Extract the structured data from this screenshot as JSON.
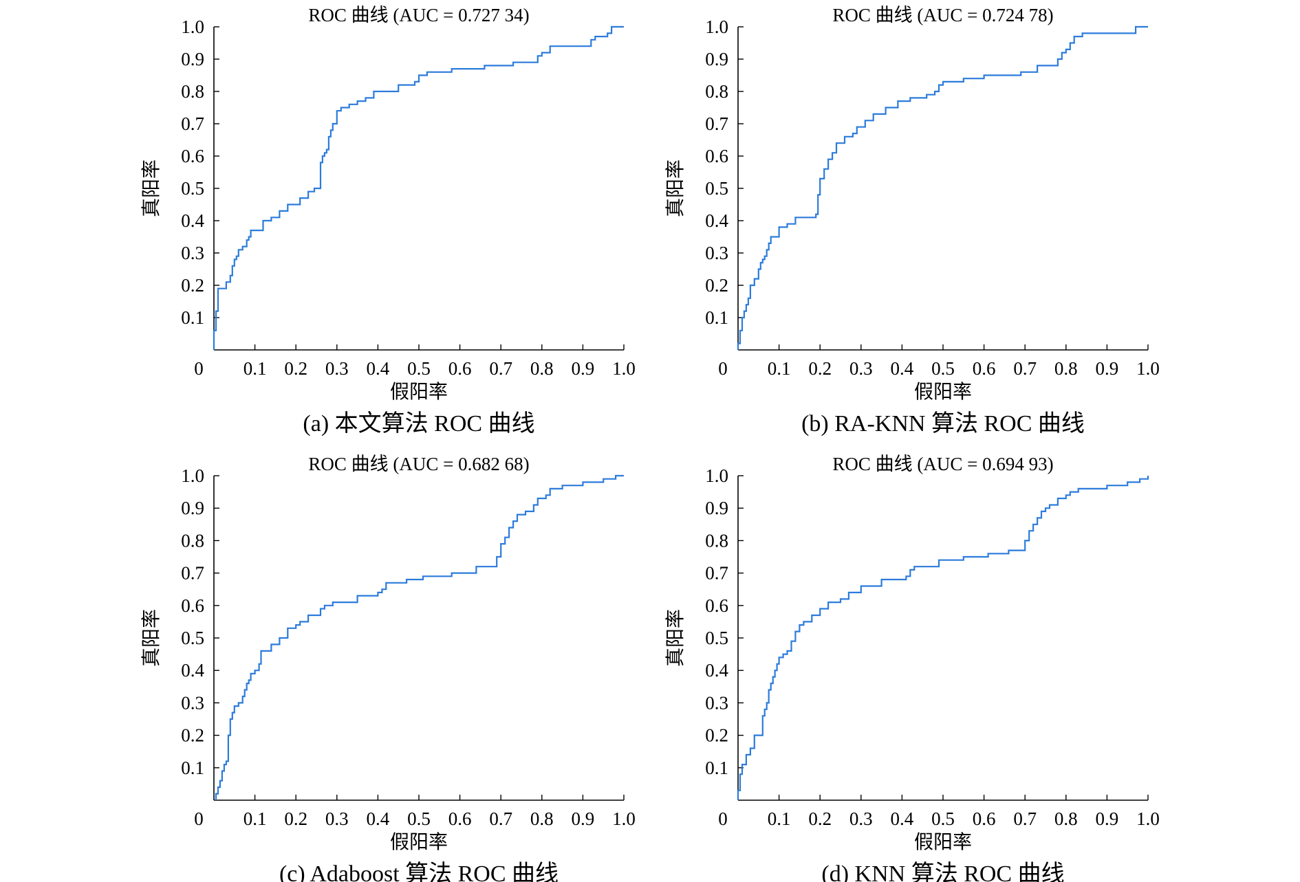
{
  "figure": {
    "curve_color": "#2b7bdc"
  },
  "chart_data": [
    {
      "type": "line",
      "title": "ROC 曲线 (AUC = 0.727 34)",
      "xlabel": "假阳率",
      "ylabel": "真阳率",
      "caption": "(a) 本文算法 ROC 曲线",
      "xlim": [
        0,
        1.0
      ],
      "ylim": [
        0,
        1.0
      ],
      "x_ticks": [
        0,
        0.1,
        0.2,
        0.3,
        0.4,
        0.5,
        0.6,
        0.7,
        0.8,
        0.9,
        1.0
      ],
      "x_tick_labels": [
        "0",
        "0.1",
        "0.2",
        "0.3",
        "0.4",
        "0.5",
        "0.6",
        "0.7",
        "0.8",
        "0.9",
        "1.0"
      ],
      "y_ticks": [
        0.1,
        0.2,
        0.3,
        0.4,
        0.5,
        0.6,
        0.7,
        0.8,
        0.9,
        1.0
      ],
      "y_tick_labels": [
        "0.1",
        "0.2",
        "0.3",
        "0.4",
        "0.5",
        "0.6",
        "0.7",
        "0.8",
        "0.9",
        "1.0"
      ],
      "grid": false,
      "series": [
        {
          "x": [
            0,
            0,
            0.005,
            0.005,
            0.01,
            0.01,
            0.03,
            0.03,
            0.04,
            0.04,
            0.045,
            0.045,
            0.05,
            0.05,
            0.055,
            0.055,
            0.06,
            0.06,
            0.07,
            0.07,
            0.08,
            0.08,
            0.085,
            0.085,
            0.09,
            0.09,
            0.12,
            0.12,
            0.14,
            0.14,
            0.16,
            0.16,
            0.18,
            0.18,
            0.21,
            0.21,
            0.23,
            0.23,
            0.245,
            0.245,
            0.26,
            0.26,
            0.265,
            0.265,
            0.27,
            0.27,
            0.275,
            0.275,
            0.28,
            0.28,
            0.285,
            0.285,
            0.29,
            0.29,
            0.3,
            0.3,
            0.31,
            0.31,
            0.33,
            0.33,
            0.35,
            0.35,
            0.37,
            0.37,
            0.39,
            0.39,
            0.45,
            0.45,
            0.49,
            0.49,
            0.5,
            0.5,
            0.52,
            0.52,
            0.58,
            0.58,
            0.66,
            0.66,
            0.73,
            0.73,
            0.79,
            0.79,
            0.8,
            0.8,
            0.82,
            0.82,
            0.92,
            0.92,
            0.93,
            0.93,
            0.96,
            0.96,
            0.97,
            0.97,
            1.0,
            1.0
          ],
          "y": [
            0,
            0.06,
            0.06,
            0.12,
            0.12,
            0.19,
            0.19,
            0.21,
            0.21,
            0.23,
            0.23,
            0.26,
            0.26,
            0.28,
            0.28,
            0.29,
            0.29,
            0.31,
            0.31,
            0.32,
            0.32,
            0.34,
            0.34,
            0.35,
            0.35,
            0.37,
            0.37,
            0.4,
            0.4,
            0.41,
            0.41,
            0.43,
            0.43,
            0.45,
            0.45,
            0.47,
            0.47,
            0.49,
            0.49,
            0.5,
            0.5,
            0.58,
            0.58,
            0.6,
            0.6,
            0.61,
            0.61,
            0.62,
            0.62,
            0.66,
            0.66,
            0.68,
            0.68,
            0.7,
            0.7,
            0.74,
            0.74,
            0.75,
            0.75,
            0.76,
            0.76,
            0.77,
            0.77,
            0.78,
            0.78,
            0.8,
            0.8,
            0.82,
            0.82,
            0.83,
            0.83,
            0.85,
            0.85,
            0.86,
            0.86,
            0.87,
            0.87,
            0.88,
            0.88,
            0.89,
            0.89,
            0.91,
            0.91,
            0.92,
            0.92,
            0.94,
            0.94,
            0.96,
            0.96,
            0.97,
            0.97,
            0.98,
            0.98,
            1.0,
            1.0,
            1.0
          ]
        }
      ]
    },
    {
      "type": "line",
      "title": "ROC 曲线 (AUC = 0.724 78)",
      "xlabel": "假阳率",
      "ylabel": "真阳率",
      "caption": "(b) RA-KNN 算法 ROC 曲线",
      "xlim": [
        0,
        1.0
      ],
      "ylim": [
        0,
        1.0
      ],
      "x_ticks": [
        0,
        0.1,
        0.2,
        0.3,
        0.4,
        0.5,
        0.6,
        0.7,
        0.8,
        0.9,
        1.0
      ],
      "x_tick_labels": [
        "0",
        "0.1",
        "0.2",
        "0.3",
        "0.4",
        "0.5",
        "0.6",
        "0.7",
        "0.8",
        "0.9",
        "1.0"
      ],
      "y_ticks": [
        0.1,
        0.2,
        0.3,
        0.4,
        0.5,
        0.6,
        0.7,
        0.8,
        0.9,
        1.0
      ],
      "y_tick_labels": [
        "0.1",
        "0.2",
        "0.3",
        "0.4",
        "0.5",
        "0.6",
        "0.7",
        "0.8",
        "0.9",
        "1.0"
      ],
      "grid": false,
      "series": [
        {
          "x": [
            0,
            0,
            0.005,
            0.005,
            0.01,
            0.01,
            0.015,
            0.015,
            0.02,
            0.02,
            0.025,
            0.025,
            0.03,
            0.03,
            0.04,
            0.04,
            0.05,
            0.05,
            0.055,
            0.055,
            0.06,
            0.06,
            0.065,
            0.065,
            0.07,
            0.07,
            0.075,
            0.075,
            0.08,
            0.08,
            0.1,
            0.1,
            0.12,
            0.12,
            0.14,
            0.14,
            0.19,
            0.19,
            0.195,
            0.195,
            0.2,
            0.2,
            0.21,
            0.21,
            0.22,
            0.22,
            0.23,
            0.23,
            0.24,
            0.24,
            0.26,
            0.26,
            0.28,
            0.28,
            0.29,
            0.29,
            0.31,
            0.31,
            0.33,
            0.33,
            0.36,
            0.36,
            0.39,
            0.39,
            0.42,
            0.42,
            0.46,
            0.46,
            0.48,
            0.48,
            0.49,
            0.49,
            0.5,
            0.5,
            0.55,
            0.55,
            0.6,
            0.6,
            0.69,
            0.69,
            0.73,
            0.73,
            0.78,
            0.78,
            0.79,
            0.79,
            0.8,
            0.8,
            0.81,
            0.81,
            0.82,
            0.82,
            0.84,
            0.84,
            0.97,
            0.97,
            1.0,
            1.0
          ],
          "y": [
            0,
            0.02,
            0.02,
            0.06,
            0.06,
            0.1,
            0.1,
            0.12,
            0.12,
            0.14,
            0.14,
            0.16,
            0.16,
            0.2,
            0.2,
            0.22,
            0.22,
            0.25,
            0.25,
            0.27,
            0.27,
            0.28,
            0.28,
            0.29,
            0.29,
            0.31,
            0.31,
            0.33,
            0.33,
            0.35,
            0.35,
            0.38,
            0.38,
            0.39,
            0.39,
            0.41,
            0.41,
            0.42,
            0.42,
            0.48,
            0.48,
            0.53,
            0.53,
            0.56,
            0.56,
            0.59,
            0.59,
            0.61,
            0.61,
            0.64,
            0.64,
            0.66,
            0.66,
            0.67,
            0.67,
            0.69,
            0.69,
            0.71,
            0.71,
            0.73,
            0.73,
            0.75,
            0.75,
            0.77,
            0.77,
            0.78,
            0.78,
            0.79,
            0.79,
            0.8,
            0.8,
            0.82,
            0.82,
            0.83,
            0.83,
            0.84,
            0.84,
            0.85,
            0.85,
            0.86,
            0.86,
            0.88,
            0.88,
            0.9,
            0.9,
            0.92,
            0.92,
            0.93,
            0.93,
            0.95,
            0.95,
            0.97,
            0.97,
            0.98,
            0.98,
            1.0,
            1.0,
            1.0
          ]
        }
      ]
    },
    {
      "type": "line",
      "title": "ROC 曲线 (AUC = 0.682 68)",
      "xlabel": "假阳率",
      "ylabel": "真阳率",
      "caption": "(c) Adaboost 算法 ROC 曲线",
      "xlim": [
        0,
        1.0
      ],
      "ylim": [
        0,
        1.0
      ],
      "x_ticks": [
        0,
        0.1,
        0.2,
        0.3,
        0.4,
        0.5,
        0.6,
        0.7,
        0.8,
        0.9,
        1.0
      ],
      "x_tick_labels": [
        "0",
        "0.1",
        "0.2",
        "0.3",
        "0.4",
        "0.5",
        "0.6",
        "0.7",
        "0.8",
        "0.9",
        "1.0"
      ],
      "y_ticks": [
        0.1,
        0.2,
        0.3,
        0.4,
        0.5,
        0.6,
        0.7,
        0.8,
        0.9,
        1.0
      ],
      "y_tick_labels": [
        "0.1",
        "0.2",
        "0.3",
        "0.4",
        "0.5",
        "0.6",
        "0.7",
        "0.8",
        "0.9",
        "1.0"
      ],
      "grid": false,
      "series": [
        {
          "x": [
            0.005,
            0.005,
            0.01,
            0.01,
            0.015,
            0.015,
            0.02,
            0.02,
            0.025,
            0.025,
            0.03,
            0.03,
            0.035,
            0.035,
            0.04,
            0.04,
            0.045,
            0.045,
            0.05,
            0.05,
            0.06,
            0.06,
            0.07,
            0.07,
            0.075,
            0.075,
            0.08,
            0.08,
            0.085,
            0.085,
            0.09,
            0.09,
            0.1,
            0.1,
            0.11,
            0.11,
            0.115,
            0.115,
            0.14,
            0.14,
            0.16,
            0.16,
            0.18,
            0.18,
            0.2,
            0.2,
            0.21,
            0.21,
            0.23,
            0.23,
            0.26,
            0.26,
            0.27,
            0.27,
            0.29,
            0.29,
            0.35,
            0.35,
            0.4,
            0.4,
            0.41,
            0.41,
            0.42,
            0.42,
            0.47,
            0.47,
            0.51,
            0.51,
            0.58,
            0.58,
            0.64,
            0.64,
            0.69,
            0.69,
            0.7,
            0.7,
            0.71,
            0.71,
            0.72,
            0.72,
            0.73,
            0.73,
            0.74,
            0.74,
            0.76,
            0.76,
            0.78,
            0.78,
            0.79,
            0.79,
            0.81,
            0.81,
            0.82,
            0.82,
            0.85,
            0.85,
            0.9,
            0.9,
            0.95,
            0.95,
            0.98,
            0.98,
            1.0,
            1.0
          ],
          "y": [
            0,
            0.02,
            0.02,
            0.04,
            0.04,
            0.06,
            0.06,
            0.09,
            0.09,
            0.11,
            0.11,
            0.12,
            0.12,
            0.2,
            0.2,
            0.25,
            0.25,
            0.27,
            0.27,
            0.29,
            0.29,
            0.3,
            0.3,
            0.32,
            0.32,
            0.34,
            0.34,
            0.36,
            0.36,
            0.37,
            0.37,
            0.39,
            0.39,
            0.4,
            0.4,
            0.42,
            0.42,
            0.46,
            0.46,
            0.48,
            0.48,
            0.5,
            0.5,
            0.53,
            0.53,
            0.54,
            0.54,
            0.55,
            0.55,
            0.57,
            0.57,
            0.59,
            0.59,
            0.6,
            0.6,
            0.61,
            0.61,
            0.63,
            0.63,
            0.64,
            0.64,
            0.65,
            0.65,
            0.67,
            0.67,
            0.68,
            0.68,
            0.69,
            0.69,
            0.7,
            0.7,
            0.72,
            0.72,
            0.75,
            0.75,
            0.79,
            0.79,
            0.81,
            0.81,
            0.84,
            0.84,
            0.86,
            0.86,
            0.88,
            0.88,
            0.89,
            0.89,
            0.91,
            0.91,
            0.93,
            0.93,
            0.94,
            0.94,
            0.96,
            0.96,
            0.97,
            0.97,
            0.98,
            0.98,
            0.99,
            0.99,
            1.0,
            1.0,
            1.0
          ]
        }
      ]
    },
    {
      "type": "line",
      "title": "ROC 曲线 (AUC = 0.694 93)",
      "xlabel": "假阳率",
      "ylabel": "真阳率",
      "caption": "(d) KNN 算法 ROC 曲线",
      "xlim": [
        0,
        1.0
      ],
      "ylim": [
        0,
        1.0
      ],
      "x_ticks": [
        0,
        0.1,
        0.2,
        0.3,
        0.4,
        0.5,
        0.6,
        0.7,
        0.8,
        0.9,
        1.0
      ],
      "x_tick_labels": [
        "0",
        "0.1",
        "0.2",
        "0.3",
        "0.4",
        "0.5",
        "0.6",
        "0.7",
        "0.8",
        "0.9",
        "1.0"
      ],
      "y_ticks": [
        0.1,
        0.2,
        0.3,
        0.4,
        0.5,
        0.6,
        0.7,
        0.8,
        0.9,
        1.0
      ],
      "y_tick_labels": [
        "0.1",
        "0.2",
        "0.3",
        "0.4",
        "0.5",
        "0.6",
        "0.7",
        "0.8",
        "0.9",
        "1.0"
      ],
      "grid": false,
      "series": [
        {
          "x": [
            0,
            0,
            0.005,
            0.005,
            0.01,
            0.01,
            0.02,
            0.02,
            0.03,
            0.03,
            0.04,
            0.04,
            0.06,
            0.06,
            0.065,
            0.065,
            0.07,
            0.07,
            0.075,
            0.075,
            0.08,
            0.08,
            0.085,
            0.085,
            0.09,
            0.09,
            0.095,
            0.095,
            0.1,
            0.1,
            0.11,
            0.11,
            0.12,
            0.12,
            0.13,
            0.13,
            0.14,
            0.14,
            0.15,
            0.15,
            0.16,
            0.16,
            0.18,
            0.18,
            0.2,
            0.2,
            0.22,
            0.22,
            0.25,
            0.25,
            0.27,
            0.27,
            0.3,
            0.3,
            0.35,
            0.35,
            0.41,
            0.41,
            0.42,
            0.42,
            0.43,
            0.43,
            0.49,
            0.49,
            0.55,
            0.55,
            0.61,
            0.61,
            0.66,
            0.66,
            0.7,
            0.7,
            0.71,
            0.71,
            0.72,
            0.72,
            0.73,
            0.73,
            0.74,
            0.74,
            0.75,
            0.75,
            0.76,
            0.76,
            0.78,
            0.78,
            0.8,
            0.8,
            0.81,
            0.81,
            0.83,
            0.83,
            0.9,
            0.9,
            0.95,
            0.95,
            0.98,
            0.98,
            1.0,
            1.0
          ],
          "y": [
            0,
            0.03,
            0.03,
            0.08,
            0.08,
            0.11,
            0.11,
            0.14,
            0.14,
            0.16,
            0.16,
            0.2,
            0.2,
            0.26,
            0.26,
            0.28,
            0.28,
            0.3,
            0.3,
            0.34,
            0.34,
            0.36,
            0.36,
            0.38,
            0.38,
            0.4,
            0.4,
            0.42,
            0.42,
            0.44,
            0.44,
            0.45,
            0.45,
            0.46,
            0.46,
            0.49,
            0.49,
            0.52,
            0.52,
            0.54,
            0.54,
            0.55,
            0.55,
            0.57,
            0.57,
            0.59,
            0.59,
            0.61,
            0.61,
            0.62,
            0.62,
            0.64,
            0.64,
            0.66,
            0.66,
            0.68,
            0.68,
            0.69,
            0.69,
            0.71,
            0.71,
            0.72,
            0.72,
            0.74,
            0.74,
            0.75,
            0.75,
            0.76,
            0.76,
            0.77,
            0.77,
            0.8,
            0.8,
            0.83,
            0.83,
            0.85,
            0.85,
            0.87,
            0.87,
            0.89,
            0.89,
            0.9,
            0.9,
            0.91,
            0.91,
            0.93,
            0.93,
            0.94,
            0.94,
            0.95,
            0.95,
            0.96,
            0.96,
            0.97,
            0.97,
            0.98,
            0.98,
            0.99,
            0.99,
            1.0
          ]
        }
      ]
    }
  ]
}
